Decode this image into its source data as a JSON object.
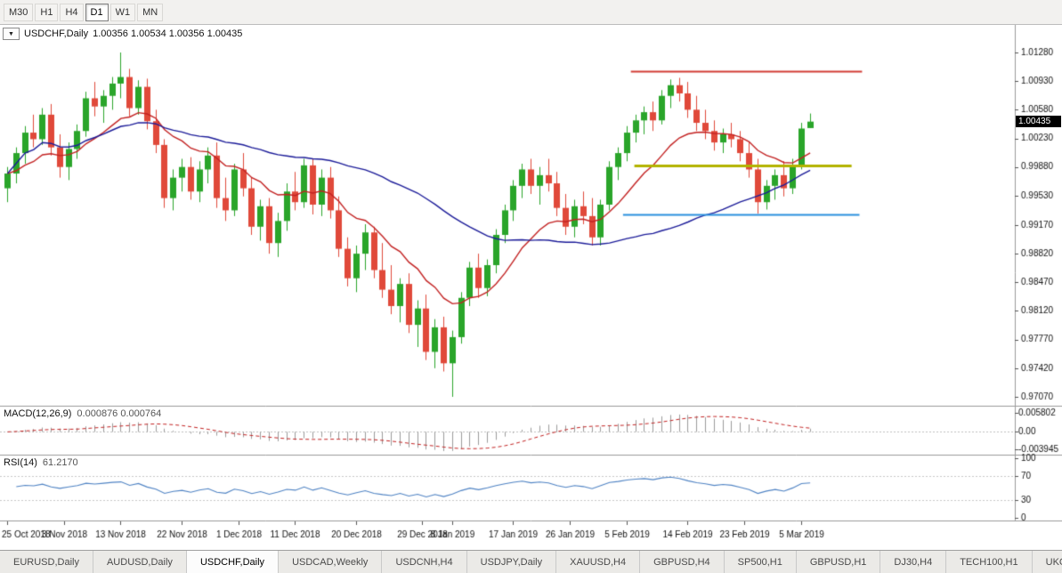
{
  "toolbar": {
    "timeframes": [
      {
        "label": "M30",
        "active": false
      },
      {
        "label": "H1",
        "active": false
      },
      {
        "label": "H4",
        "active": false
      },
      {
        "label": "D1",
        "active": true
      },
      {
        "label": "W1",
        "active": false
      },
      {
        "label": "MN",
        "active": false
      }
    ]
  },
  "chart": {
    "title": "USDCHF,Daily",
    "ohlc_text": "1.00356 1.00534 1.00356 1.00435",
    "current_price": "1.00435",
    "bull_color": "#2aa52a",
    "bear_color": "#e0493a",
    "price_axis_labels": [
      "1.01280",
      "1.00930",
      "1.00580",
      "1.00230",
      "0.99880",
      "0.99530",
      "0.99170",
      "0.98820",
      "0.98470",
      "0.98120",
      "0.97770",
      "0.97420",
      "0.97070"
    ]
  },
  "chart_data": {
    "type": "candlestick",
    "symbol": "USDCHF",
    "timeframe": "Daily",
    "y_axis_range": [
      0.9707,
      1.0128
    ],
    "ohlc": [
      [
        "2018-10-25",
        0.9962,
        0.9988,
        0.9945,
        0.998
      ],
      [
        "2018-10-26",
        0.998,
        1.0012,
        0.9968,
        1.0005
      ],
      [
        "2018-10-29",
        1.0005,
        1.0038,
        0.9992,
        1.003
      ],
      [
        "2018-10-30",
        1.003,
        1.0052,
        1.0012,
        1.0022
      ],
      [
        "2018-10-31",
        1.0022,
        1.006,
        1.0015,
        1.0052
      ],
      [
        "2018-11-01",
        1.0052,
        1.0065,
        1.0002,
        1.0012
      ],
      [
        "2018-11-02",
        1.0012,
        1.0028,
        0.9975,
        0.9988
      ],
      [
        "2018-11-05",
        0.9988,
        1.0018,
        0.9972,
        1.001
      ],
      [
        "2018-11-06",
        1.001,
        1.004,
        0.9998,
        1.0032
      ],
      [
        "2018-11-07",
        1.0032,
        1.008,
        1.0025,
        1.0072
      ],
      [
        "2018-11-08",
        1.0072,
        1.0092,
        1.005,
        1.0062
      ],
      [
        "2018-11-09",
        1.0062,
        1.0082,
        1.0042,
        1.0075
      ],
      [
        "2018-11-12",
        1.0075,
        1.0098,
        1.0058,
        1.009
      ],
      [
        "2018-11-13",
        1.009,
        1.0128,
        1.0072,
        1.0098
      ],
      [
        "2018-11-14",
        1.0098,
        1.0108,
        1.005,
        1.006
      ],
      [
        "2018-11-15",
        1.006,
        1.0094,
        1.0052,
        1.0086
      ],
      [
        "2018-11-16",
        1.0086,
        1.0096,
        1.0034,
        1.0044
      ],
      [
        "2018-11-19",
        1.0044,
        1.0058,
        1.0005,
        1.0015
      ],
      [
        "2018-11-20",
        1.0015,
        1.0022,
        0.9938,
        0.995
      ],
      [
        "2018-11-21",
        0.995,
        0.9985,
        0.9935,
        0.9975
      ],
      [
        "2018-11-22",
        0.9975,
        0.9998,
        0.9958,
        0.9988
      ],
      [
        "2018-11-23",
        0.9988,
        1.0,
        0.9948,
        0.9958
      ],
      [
        "2018-11-26",
        0.9958,
        0.9995,
        0.9945,
        0.9985
      ],
      [
        "2018-11-27",
        0.9985,
        1.0012,
        0.9968,
        1.0002
      ],
      [
        "2018-11-28",
        1.0002,
        1.0018,
        0.9938,
        0.995
      ],
      [
        "2018-11-29",
        0.995,
        0.9975,
        0.9922,
        0.9935
      ],
      [
        "2018-11-30",
        0.9935,
        0.9992,
        0.9928,
        0.9985
      ],
      [
        "2018-12-03",
        0.9985,
        1.0005,
        0.9952,
        0.9962
      ],
      [
        "2018-12-04",
        0.9962,
        0.9975,
        0.9905,
        0.9915
      ],
      [
        "2018-12-05",
        0.9915,
        0.9948,
        0.9898,
        0.994
      ],
      [
        "2018-12-06",
        0.994,
        0.995,
        0.9882,
        0.9895
      ],
      [
        "2018-12-07",
        0.9895,
        0.9932,
        0.9878,
        0.9922
      ],
      [
        "2018-12-10",
        0.9922,
        0.9968,
        0.991,
        0.9958
      ],
      [
        "2018-12-11",
        0.9958,
        0.9982,
        0.9935,
        0.9945
      ],
      [
        "2018-12-12",
        0.9945,
        0.9998,
        0.9938,
        0.999
      ],
      [
        "2018-12-13",
        0.999,
        0.9998,
        0.993,
        0.9942
      ],
      [
        "2018-12-14",
        0.9942,
        0.9985,
        0.9928,
        0.9975
      ],
      [
        "2018-12-17",
        0.9975,
        0.9988,
        0.9925,
        0.9935
      ],
      [
        "2018-12-18",
        0.9935,
        0.9952,
        0.9878,
        0.9888
      ],
      [
        "2018-12-19",
        0.9888,
        0.9902,
        0.9842,
        0.9852
      ],
      [
        "2018-12-20",
        0.9852,
        0.9892,
        0.9835,
        0.9882
      ],
      [
        "2018-12-21",
        0.9882,
        0.9918,
        0.9862,
        0.9908
      ],
      [
        "2018-12-24",
        0.9908,
        0.9915,
        0.9852,
        0.9862
      ],
      [
        "2018-12-26",
        0.9862,
        0.9895,
        0.9828,
        0.9838
      ],
      [
        "2018-12-27",
        0.9838,
        0.9868,
        0.9808,
        0.9818
      ],
      [
        "2018-12-28",
        0.9818,
        0.9852,
        0.9798,
        0.9845
      ],
      [
        "2018-12-31",
        0.9845,
        0.9858,
        0.9785,
        0.9795
      ],
      [
        "2019-01-02",
        0.9795,
        0.9825,
        0.9768,
        0.9815
      ],
      [
        "2019-01-03",
        0.9815,
        0.9832,
        0.9752,
        0.9762
      ],
      [
        "2019-01-04",
        0.9762,
        0.9802,
        0.9742,
        0.9792
      ],
      [
        "2019-01-07",
        0.9792,
        0.9805,
        0.9738,
        0.9748
      ],
      [
        "2019-01-08",
        0.9748,
        0.9788,
        0.9707,
        0.978
      ],
      [
        "2019-01-09",
        0.978,
        0.9835,
        0.9772,
        0.9828
      ],
      [
        "2019-01-10",
        0.9828,
        0.9872,
        0.9818,
        0.9865
      ],
      [
        "2019-01-11",
        0.9865,
        0.9882,
        0.9828,
        0.984
      ],
      [
        "2019-01-14",
        0.984,
        0.9875,
        0.983,
        0.9868
      ],
      [
        "2019-01-15",
        0.9868,
        0.9912,
        0.9858,
        0.9905
      ],
      [
        "2019-01-16",
        0.9905,
        0.9942,
        0.9895,
        0.9935
      ],
      [
        "2019-01-17",
        0.9935,
        0.9972,
        0.9922,
        0.9965
      ],
      [
        "2019-01-18",
        0.9965,
        0.9992,
        0.995,
        0.9985
      ],
      [
        "2019-01-21",
        0.9985,
        0.9998,
        0.9955,
        0.9965
      ],
      [
        "2019-01-22",
        0.9965,
        0.9988,
        0.9942,
        0.9978
      ],
      [
        "2019-01-23",
        0.9978,
        0.9998,
        0.9958,
        0.9968
      ],
      [
        "2019-01-24",
        0.9968,
        0.9982,
        0.9928,
        0.9938
      ],
      [
        "2019-01-25",
        0.9938,
        0.9955,
        0.9905,
        0.9915
      ],
      [
        "2019-01-28",
        0.9915,
        0.9948,
        0.9902,
        0.994
      ],
      [
        "2019-01-29",
        0.994,
        0.9958,
        0.9918,
        0.9928
      ],
      [
        "2019-01-30",
        0.9928,
        0.995,
        0.9892,
        0.9902
      ],
      [
        "2019-01-31",
        0.9902,
        0.9948,
        0.9892,
        0.9942
      ],
      [
        "2019-02-01",
        0.9942,
        0.9995,
        0.9935,
        0.9988
      ],
      [
        "2019-02-04",
        0.9988,
        1.0012,
        0.9972,
        1.0005
      ],
      [
        "2019-02-05",
        1.0005,
        1.0038,
        0.9995,
        1.003
      ],
      [
        "2019-02-06",
        1.003,
        1.0052,
        1.0018,
        1.0045
      ],
      [
        "2019-02-07",
        1.0045,
        1.0062,
        1.0028,
        1.0055
      ],
      [
        "2019-02-08",
        1.0055,
        1.0068,
        1.0032,
        1.0045
      ],
      [
        "2019-02-11",
        1.0045,
        1.0082,
        1.004,
        1.0075
      ],
      [
        "2019-02-12",
        1.0075,
        1.0095,
        1.006,
        1.0088
      ],
      [
        "2019-02-13",
        1.0088,
        1.0097,
        1.0068,
        1.0078
      ],
      [
        "2019-02-14",
        1.0078,
        1.0092,
        1.0048,
        1.0058
      ],
      [
        "2019-02-15",
        1.0058,
        1.0075,
        1.0032,
        1.0042
      ],
      [
        "2019-02-18",
        1.0042,
        1.0058,
        1.0022,
        1.0032
      ],
      [
        "2019-02-19",
        1.0032,
        1.0045,
        1.0008,
        1.0018
      ],
      [
        "2019-02-20",
        1.0018,
        1.0035,
        1.0005,
        1.0028
      ],
      [
        "2019-02-21",
        1.0028,
        1.0042,
        1.0012,
        1.0022
      ],
      [
        "2019-02-22",
        1.0022,
        1.0032,
        0.9995,
        1.0005
      ],
      [
        "2019-02-25",
        1.0005,
        1.0018,
        0.9975,
        0.9985
      ],
      [
        "2019-02-26",
        0.9985,
        0.9998,
        0.9931,
        0.9945
      ],
      [
        "2019-02-27",
        0.9945,
        0.9972,
        0.9936,
        0.9965
      ],
      [
        "2019-02-28",
        0.9965,
        0.9985,
        0.9948,
        0.9978
      ],
      [
        "2019-03-01",
        0.9978,
        0.9995,
        0.9952,
        0.9962
      ],
      [
        "2019-03-04",
        0.9962,
        0.9998,
        0.9955,
        0.999
      ],
      [
        "2019-03-05",
        0.999,
        1.0042,
        0.9985,
        1.0035
      ],
      [
        "2019-03-06",
        1.00356,
        1.00534,
        1.00356,
        1.00435
      ]
    ],
    "moving_averages": [
      {
        "name": "fast-ma",
        "type": "ema",
        "period": 13,
        "color": "#c32222"
      },
      {
        "name": "slow-ma",
        "type": "sma",
        "period": 40,
        "color": "#1c1c99"
      }
    ],
    "levels": [
      {
        "name": "resistance-line",
        "price": 1.0105,
        "color": "#d23b34",
        "from_index": 71.5,
        "to_index": 98.0,
        "width": 2
      },
      {
        "name": "broken-support-line",
        "price": 0.999,
        "color": "#b3b300",
        "from_index": 71.9,
        "to_index": 96.8,
        "width": 3
      },
      {
        "name": "support-line",
        "price": 0.993,
        "color": "#2a8fdd",
        "from_index": 70.6,
        "to_index": 97.7,
        "width": 2
      }
    ],
    "date_labels": [
      {
        "index": 0,
        "text": "25 Oct 2018"
      },
      {
        "index": 6.5,
        "text": "3 Nov 2018"
      },
      {
        "index": 13,
        "text": "13 Nov 2018"
      },
      {
        "index": 20,
        "text": "22 Nov 2018"
      },
      {
        "index": 26.5,
        "text": "1 Dec 2018"
      },
      {
        "index": 33,
        "text": "11 Dec 2018"
      },
      {
        "index": 40,
        "text": "20 Dec 2018"
      },
      {
        "index": 47.5,
        "text": "29 Dec 2018"
      },
      {
        "index": 51,
        "text": "8 Jan 2019"
      },
      {
        "index": 58,
        "text": "17 Jan 2019"
      },
      {
        "index": 64.5,
        "text": "26 Jan 2019"
      },
      {
        "index": 71,
        "text": "5 Feb 2019"
      },
      {
        "index": 78,
        "text": "14 Feb 2019"
      },
      {
        "index": 84.5,
        "text": "23 Feb 2019"
      },
      {
        "index": 91,
        "text": "5 Mar 2019"
      }
    ]
  },
  "indicators": {
    "macd": {
      "label": "MACD(12,26,9)",
      "values": "0.000876 0.000764",
      "axis_labels": {
        "top": "0.005802",
        "zero": "0.00",
        "bottom": "-0.003945"
      },
      "histogram_color": "#9c9c9c",
      "signal_color": "#c32222"
    },
    "rsi": {
      "label": "RSI(14)",
      "value": "61.2170",
      "axis_labels": [
        "100",
        "70",
        "30",
        "0"
      ],
      "level_lines": [
        70,
        30
      ],
      "line_color": "#4f83c4"
    }
  },
  "bottom_tabs": {
    "items": [
      {
        "label": "EURUSD,Daily",
        "active": false
      },
      {
        "label": "AUDUSD,Daily",
        "active": false
      },
      {
        "label": "USDCHF,Daily",
        "active": true
      },
      {
        "label": "USDCAD,Weekly",
        "active": false
      },
      {
        "label": "USDCNH,H4",
        "active": false
      },
      {
        "label": "USDJPY,Daily",
        "active": false
      },
      {
        "label": "XAUUSD,H4",
        "active": false
      },
      {
        "label": "GBPUSD,H4",
        "active": false
      },
      {
        "label": "SP500,H1",
        "active": false
      },
      {
        "label": "GBPUSD,H1",
        "active": false
      },
      {
        "label": "DJ30,H4",
        "active": false
      },
      {
        "label": "TECH100,H1",
        "active": false
      },
      {
        "label": "UKC",
        "active": false
      }
    ]
  }
}
